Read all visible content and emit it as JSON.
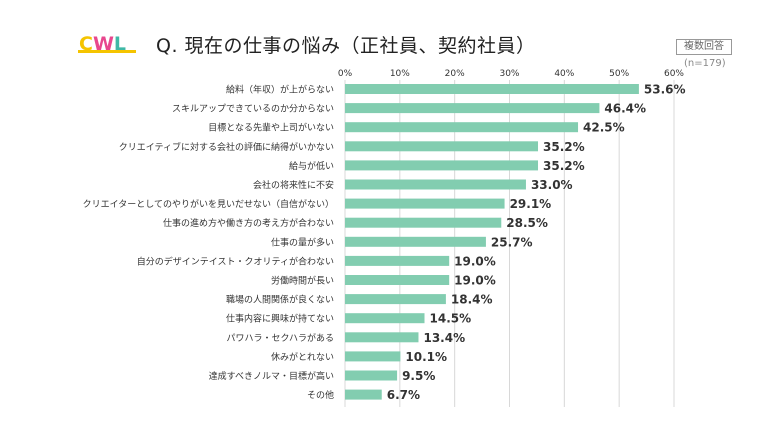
{
  "header": {
    "logo_text": "CWL",
    "title": "Q. 現在の仕事の悩み（正社員、契約社員）",
    "multi_answer": "複数回答",
    "sample": "(n=179)"
  },
  "colors": {
    "bar": "#82CDB0",
    "grid": "#d8d8d8",
    "logo_yellow": "#F5C400",
    "logo_pink": "#E8478E",
    "logo_teal": "#3FB8A6"
  },
  "chart_data": {
    "type": "bar",
    "orientation": "horizontal",
    "title": "Q. 現在の仕事の悩み（正社員、契約社員）",
    "categories": [
      "給料（年収）が上がらない",
      "スキルアップできているのか分からない",
      "目標となる先輩や上司がいない",
      "クリエイティブに対する会社の評価に納得がいかない",
      "給与が低い",
      "会社の将来性に不安",
      "クリエイターとしてのやりがいを見いだせない（自信がない）",
      "仕事の進め方や働き方の考え方が合わない",
      "仕事の量が多い",
      "自分のデザインテイスト・クオリティが合わない",
      "労働時間が長い",
      "職場の人間関係が良くない",
      "仕事内容に興味が持てない",
      "パワハラ・セクハラがある",
      "休みがとれない",
      "達成すべきノルマ・目標が高い",
      "その他"
    ],
    "values": [
      53.6,
      46.4,
      42.5,
      35.2,
      35.2,
      33.0,
      29.1,
      28.5,
      25.7,
      19.0,
      19.0,
      18.4,
      14.5,
      13.4,
      10.1,
      9.5,
      6.7
    ],
    "value_labels": [
      "53.6%",
      "46.4%",
      "42.5%",
      "35.2%",
      "35.2%",
      "33.0%",
      "29.1%",
      "28.5%",
      "25.7%",
      "19.0%",
      "19.0%",
      "18.4%",
      "14.5%",
      "13.4%",
      "10.1%",
      "9.5%",
      "6.7%"
    ],
    "xlim": [
      0,
      60
    ],
    "xticks": [
      "0%",
      "10%",
      "20%",
      "30%",
      "40%",
      "50%",
      "60%"
    ],
    "grid": true
  }
}
